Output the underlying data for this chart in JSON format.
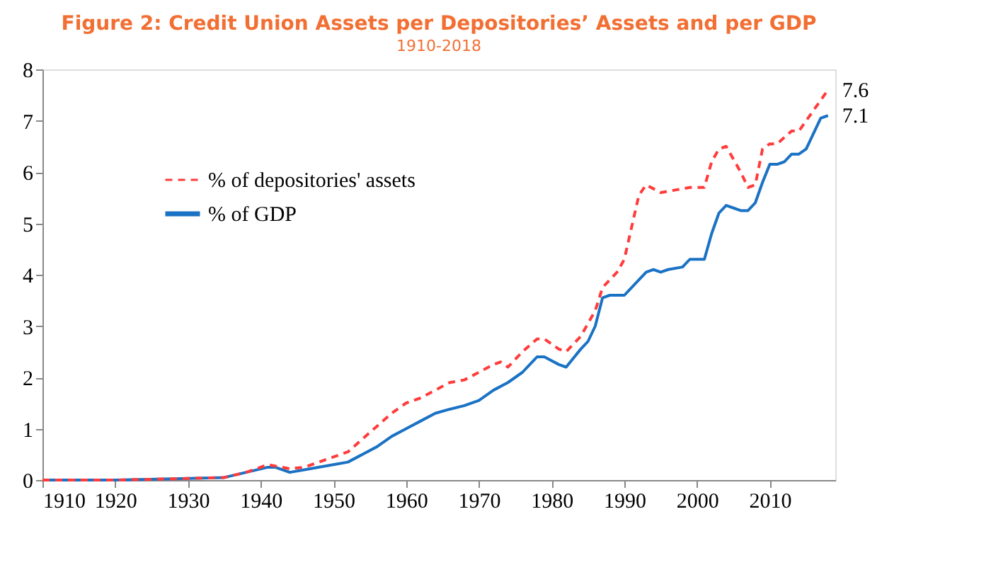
{
  "chart_data": {
    "type": "line",
    "title": "Figure 2: Credit Union Assets per Depositories’ Assets and per GDP",
    "subtitle": "1910-2018",
    "xlim": [
      1910,
      2019
    ],
    "xticks": [
      1910,
      1920,
      1930,
      1940,
      1950,
      1960,
      1970,
      1980,
      1990,
      2000,
      2010
    ],
    "ylim": [
      0,
      8
    ],
    "yticks": [
      0,
      1,
      2,
      3,
      4,
      5,
      6,
      7,
      8
    ],
    "grid": false,
    "legend": "top left",
    "marker": "none",
    "series": [
      {
        "name": "% of depositories' assets",
        "color": "#ff3b3b",
        "line_style": "dashed",
        "x": [
          1910,
          1920,
          1930,
          1935,
          1938,
          1941,
          1944,
          1946,
          1950,
          1952,
          1954,
          1956,
          1958,
          1960,
          1962,
          1964,
          1966,
          1968,
          1970,
          1972,
          1973,
          1974,
          1976,
          1978,
          1979,
          1981,
          1982,
          1984,
          1986,
          1987,
          1989,
          1990,
          1992,
          1993,
          1995,
          1997,
          1999,
          2001,
          2002,
          2003,
          2004,
          2006,
          2007,
          2008,
          2009,
          2010,
          2011,
          2013,
          2014,
          2016,
          2018
        ],
        "values": [
          0,
          0,
          0.03,
          0.05,
          0.15,
          0.3,
          0.22,
          0.25,
          0.45,
          0.55,
          0.8,
          1.05,
          1.3,
          1.5,
          1.6,
          1.75,
          1.9,
          1.95,
          2.1,
          2.25,
          2.3,
          2.2,
          2.5,
          2.75,
          2.75,
          2.55,
          2.5,
          2.8,
          3.3,
          3.75,
          4.05,
          4.3,
          5.55,
          5.75,
          5.6,
          5.65,
          5.7,
          5.7,
          6.2,
          6.45,
          6.5,
          6.0,
          5.7,
          5.75,
          6.45,
          6.55,
          6.55,
          6.8,
          6.8,
          7.2,
          7.6
        ]
      },
      {
        "name": "% of GDP",
        "color": "#1a72c4",
        "line_style": "solid",
        "x": [
          1910,
          1920,
          1930,
          1935,
          1938,
          1941,
          1942,
          1944,
          1946,
          1950,
          1952,
          1954,
          1956,
          1958,
          1960,
          1962,
          1964,
          1966,
          1968,
          1970,
          1972,
          1974,
          1976,
          1978,
          1979,
          1981,
          1982,
          1984,
          1985,
          1986,
          1987,
          1988,
          1990,
          1991,
          1993,
          1994,
          1995,
          1996,
          1998,
          1999,
          2001,
          2002,
          2003,
          2004,
          2005,
          2006,
          2007,
          2008,
          2009,
          2010,
          2011,
          2012,
          2013,
          2014,
          2015,
          2016,
          2017,
          2018
        ],
        "values": [
          0,
          0,
          0.03,
          0.05,
          0.15,
          0.25,
          0.25,
          0.15,
          0.2,
          0.3,
          0.35,
          0.5,
          0.65,
          0.85,
          1.0,
          1.15,
          1.3,
          1.38,
          1.45,
          1.55,
          1.75,
          1.9,
          2.1,
          2.4,
          2.4,
          2.25,
          2.2,
          2.55,
          2.7,
          3.0,
          3.55,
          3.6,
          3.6,
          3.75,
          4.05,
          4.1,
          4.05,
          4.1,
          4.15,
          4.3,
          4.3,
          4.8,
          5.2,
          5.35,
          5.3,
          5.25,
          5.25,
          5.4,
          5.8,
          6.15,
          6.15,
          6.2,
          6.35,
          6.35,
          6.45,
          6.75,
          7.05,
          7.1
        ]
      }
    ],
    "annotations": [
      {
        "text": "7.6",
        "x": 2018,
        "y": 7.6
      },
      {
        "text": "7.1",
        "x": 2018,
        "y": 7.1
      }
    ]
  }
}
